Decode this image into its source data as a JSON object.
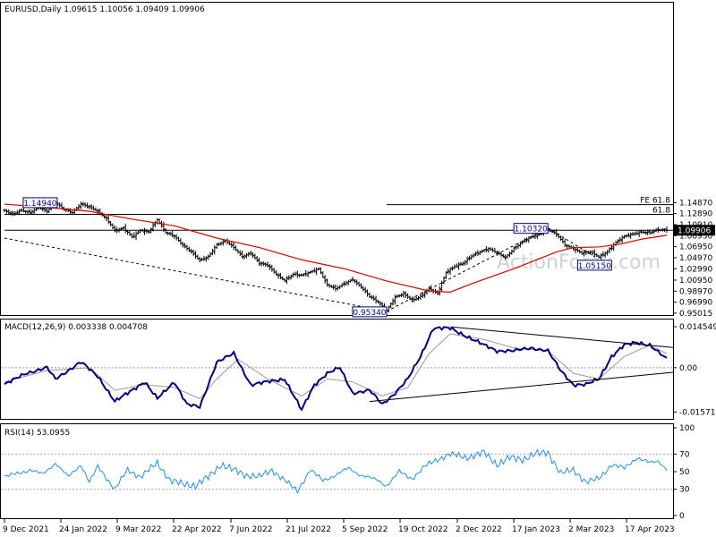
{
  "chart_data": [
    {
      "type": "ohlc",
      "header": "EURUSD,Daily  1.09615 1.10056 1.09409 1.09906",
      "symbol": "EURUSD",
      "timeframe": "Daily",
      "last_bar": {
        "open": 1.09615,
        "high": 1.10056,
        "low": 1.09409,
        "close": 1.09906
      },
      "current_price_label": "1.09906",
      "ylim": [
        0.95,
        1.49
      ],
      "y_ticks": [
        "1.14870",
        "1.12890",
        "1.10910",
        "1.08930",
        "1.06950",
        "1.04970",
        "1.02990",
        "1.00950",
        "0.98970",
        "0.96990",
        "0.95015"
      ],
      "y_tick_values": [
        1.1487,
        1.1289,
        1.1091,
        1.0893,
        1.0695,
        1.0497,
        1.0299,
        1.0095,
        0.9897,
        0.9699,
        0.95015
      ],
      "x_ticks": [
        "9 Dec 2021",
        "24 Jan 2022",
        "9 Mar 2022",
        "22 Apr 2022",
        "7 Jun 2022",
        "21 Jul 2022",
        "5 Sep 2022",
        "19 Oct 2022",
        "2 Dec 2022",
        "17 Jan 2023",
        "2 Mar 2023",
        "17 Apr 2023"
      ],
      "ma_series_name": "",
      "price_path": [
        [
          0,
          1.134
        ],
        [
          4,
          1.128
        ],
        [
          8,
          1.135
        ],
        [
          12,
          1.131
        ],
        [
          16,
          1.14
        ],
        [
          20,
          1.133
        ],
        [
          24,
          1.149
        ],
        [
          28,
          1.137
        ],
        [
          32,
          1.131
        ],
        [
          36,
          1.146
        ],
        [
          40,
          1.141
        ],
        [
          44,
          1.133
        ],
        [
          48,
          1.12
        ],
        [
          52,
          1.098
        ],
        [
          56,
          1.103
        ],
        [
          60,
          1.087
        ],
        [
          64,
          1.099
        ],
        [
          68,
          1.096
        ],
        [
          72,
          1.118
        ],
        [
          76,
          1.095
        ],
        [
          80,
          1.089
        ],
        [
          84,
          1.072
        ],
        [
          88,
          1.06
        ],
        [
          92,
          1.045
        ],
        [
          96,
          1.052
        ],
        [
          100,
          1.073
        ],
        [
          104,
          1.08
        ],
        [
          108,
          1.068
        ],
        [
          112,
          1.052
        ],
        [
          116,
          1.058
        ],
        [
          120,
          1.04
        ],
        [
          124,
          1.036
        ],
        [
          128,
          1.02
        ],
        [
          132,
          1.009
        ],
        [
          136,
          1.02
        ],
        [
          140,
          1.018
        ],
        [
          144,
          1.024
        ],
        [
          148,
          1.03
        ],
        [
          152,
          1.001
        ],
        [
          156,
          0.994
        ],
        [
          160,
          1.003
        ],
        [
          164,
          1.011
        ],
        [
          168,
          0.997
        ],
        [
          172,
          0.98
        ],
        [
          176,
          0.97
        ],
        [
          180,
          0.955
        ],
        [
          184,
          0.979
        ],
        [
          188,
          0.985
        ],
        [
          192,
          0.973
        ],
        [
          196,
          0.98
        ],
        [
          200,
          0.995
        ],
        [
          204,
          0.985
        ],
        [
          208,
          1.023
        ],
        [
          212,
          1.034
        ],
        [
          216,
          1.04
        ],
        [
          220,
          1.053
        ],
        [
          224,
          1.06
        ],
        [
          228,
          1.066
        ],
        [
          232,
          1.059
        ],
        [
          236,
          1.05
        ],
        [
          240,
          1.066
        ],
        [
          244,
          1.078
        ],
        [
          248,
          1.087
        ],
        [
          252,
          1.092
        ],
        [
          256,
          1.1
        ],
        [
          260,
          1.092
        ],
        [
          264,
          1.073
        ],
        [
          268,
          1.066
        ],
        [
          272,
          1.058
        ],
        [
          276,
          1.06
        ],
        [
          280,
          1.051
        ],
        [
          284,
          1.061
        ],
        [
          288,
          1.077
        ],
        [
          292,
          1.088
        ],
        [
          296,
          1.092
        ],
        [
          300,
          1.096
        ],
        [
          304,
          1.095
        ],
        [
          308,
          1.1
        ],
        [
          312,
          1.099
        ]
      ],
      "ma_path": [
        [
          0,
          1.146
        ],
        [
          20,
          1.14
        ],
        [
          40,
          1.133
        ],
        [
          60,
          1.119
        ],
        [
          80,
          1.107
        ],
        [
          100,
          1.085
        ],
        [
          120,
          1.068
        ],
        [
          140,
          1.046
        ],
        [
          160,
          1.03
        ],
        [
          180,
          1.008
        ],
        [
          200,
          0.99
        ],
        [
          210,
          0.988
        ],
        [
          220,
          1.003
        ],
        [
          240,
          1.03
        ],
        [
          260,
          1.06
        ],
        [
          268,
          1.068
        ],
        [
          280,
          1.069
        ],
        [
          290,
          1.074
        ],
        [
          300,
          1.083
        ],
        [
          312,
          1.09
        ]
      ],
      "annotations": [
        {
          "text": "1.14940",
          "x": 24,
          "y": 1.1494
        },
        {
          "text": "1.10320",
          "x": 256,
          "y": 1.1032
        },
        {
          "text": "1.05150",
          "x": 278,
          "y": 1.0515
        },
        {
          "text": "0.95340",
          "x": 180,
          "y": 0.9534
        }
      ],
      "hlines": [
        {
          "label": "FE 61.8",
          "value": 1.145,
          "from_x": 180
        },
        {
          "label": "61.8",
          "value": 1.1275,
          "from_x": 0
        },
        {
          "label": "",
          "value": 1.099,
          "from_x": 0
        }
      ],
      "dotted_lines": [
        {
          "from": [
            0,
            1.085
          ],
          "to": [
            180,
            0.9534
          ]
        },
        {
          "from": [
            180,
            0.9534
          ],
          "to": [
            256,
            1.1032
          ]
        },
        {
          "from": [
            256,
            1.1032
          ],
          "to": [
            278,
            1.0515
          ]
        }
      ],
      "watermark": "ActionForex.com"
    },
    {
      "type": "line",
      "header": "MACD(12,26,9) 0.003338 0.004708",
      "indicator": "MACD",
      "params": "12,26,9",
      "main": 0.003338,
      "signal": 0.004708,
      "ylim": [
        -0.0175,
        0.0155
      ],
      "y_ticks": [
        "0.014549",
        "0.00",
        "-0.015712"
      ],
      "y_tick_values": [
        0.014549,
        0.0,
        -0.015712
      ],
      "macd_path": [
        [
          0,
          -0.006
        ],
        [
          10,
          -0.002
        ],
        [
          20,
          0.0
        ],
        [
          24,
          -0.004
        ],
        [
          30,
          -0.001
        ],
        [
          36,
          0.002
        ],
        [
          44,
          -0.003
        ],
        [
          52,
          -0.012
        ],
        [
          60,
          -0.008
        ],
        [
          66,
          -0.005
        ],
        [
          72,
          -0.011
        ],
        [
          80,
          -0.005
        ],
        [
          86,
          -0.013
        ],
        [
          92,
          -0.014
        ],
        [
          100,
          0.002
        ],
        [
          108,
          0.005
        ],
        [
          116,
          -0.006
        ],
        [
          124,
          -0.005
        ],
        [
          132,
          -0.004
        ],
        [
          140,
          -0.015
        ],
        [
          146,
          -0.006
        ],
        [
          152,
          -0.002
        ],
        [
          158,
          0.0
        ],
        [
          164,
          -0.009
        ],
        [
          172,
          -0.008
        ],
        [
          178,
          -0.013
        ],
        [
          184,
          -0.009
        ],
        [
          190,
          -0.004
        ],
        [
          196,
          0.004
        ],
        [
          202,
          0.014
        ],
        [
          210,
          0.014
        ],
        [
          218,
          0.011
        ],
        [
          226,
          0.008
        ],
        [
          232,
          0.006
        ],
        [
          240,
          0.006
        ],
        [
          248,
          0.007
        ],
        [
          256,
          0.006
        ],
        [
          262,
          -0.001
        ],
        [
          268,
          -0.006
        ],
        [
          274,
          -0.006
        ],
        [
          280,
          -0.004
        ],
        [
          286,
          0.004
        ],
        [
          292,
          0.008
        ],
        [
          298,
          0.009
        ],
        [
          304,
          0.008
        ],
        [
          312,
          0.003
        ]
      ],
      "signal_path": [
        [
          0,
          -0.005
        ],
        [
          20,
          -0.001
        ],
        [
          40,
          0.0
        ],
        [
          52,
          -0.008
        ],
        [
          66,
          -0.006
        ],
        [
          80,
          -0.007
        ],
        [
          92,
          -0.011
        ],
        [
          100,
          -0.004
        ],
        [
          110,
          0.003
        ],
        [
          124,
          -0.004
        ],
        [
          140,
          -0.01
        ],
        [
          152,
          -0.004
        ],
        [
          164,
          -0.005
        ],
        [
          178,
          -0.01
        ],
        [
          190,
          -0.007
        ],
        [
          200,
          0.005
        ],
        [
          210,
          0.012
        ],
        [
          226,
          0.01
        ],
        [
          240,
          0.007
        ],
        [
          256,
          0.006
        ],
        [
          268,
          -0.002
        ],
        [
          280,
          -0.004
        ],
        [
          292,
          0.004
        ],
        [
          304,
          0.008
        ],
        [
          312,
          0.005
        ]
      ],
      "trendlines": [
        {
          "from": [
            210,
            0.0145
          ],
          "to": [
            312,
            0.0075
          ]
        },
        {
          "from": [
            172,
            -0.012
          ],
          "to": [
            312,
            -0.002
          ]
        }
      ]
    },
    {
      "type": "line",
      "header": "RSI(14) 53.0955",
      "indicator": "RSI",
      "params": "14",
      "value": 53.0955,
      "ylim": [
        0,
        100
      ],
      "y_ticks": [
        "100",
        "70",
        "50",
        "30",
        "0"
      ],
      "y_tick_values": [
        100,
        70,
        50,
        30,
        0
      ],
      "rsi_path": [
        [
          0,
          44
        ],
        [
          6,
          48
        ],
        [
          12,
          52
        ],
        [
          18,
          47
        ],
        [
          24,
          60
        ],
        [
          30,
          44
        ],
        [
          36,
          58
        ],
        [
          40,
          38
        ],
        [
          44,
          56
        ],
        [
          52,
          30
        ],
        [
          58,
          52
        ],
        [
          64,
          44
        ],
        [
          72,
          60
        ],
        [
          78,
          40
        ],
        [
          84,
          36
        ],
        [
          90,
          34
        ],
        [
          96,
          44
        ],
        [
          102,
          58
        ],
        [
          108,
          52
        ],
        [
          114,
          46
        ],
        [
          120,
          44
        ],
        [
          126,
          52
        ],
        [
          132,
          40
        ],
        [
          138,
          28
        ],
        [
          144,
          52
        ],
        [
          150,
          40
        ],
        [
          156,
          46
        ],
        [
          162,
          54
        ],
        [
          168,
          46
        ],
        [
          176,
          40
        ],
        [
          180,
          34
        ],
        [
          186,
          50
        ],
        [
          192,
          42
        ],
        [
          198,
          56
        ],
        [
          204,
          64
        ],
        [
          210,
          70
        ],
        [
          218,
          66
        ],
        [
          226,
          72
        ],
        [
          232,
          58
        ],
        [
          238,
          66
        ],
        [
          244,
          64
        ],
        [
          250,
          70
        ],
        [
          256,
          72
        ],
        [
          262,
          48
        ],
        [
          268,
          52
        ],
        [
          274,
          38
        ],
        [
          280,
          42
        ],
        [
          286,
          58
        ],
        [
          292,
          54
        ],
        [
          298,
          66
        ],
        [
          304,
          60
        ],
        [
          308,
          62
        ],
        [
          312,
          53
        ]
      ]
    }
  ]
}
